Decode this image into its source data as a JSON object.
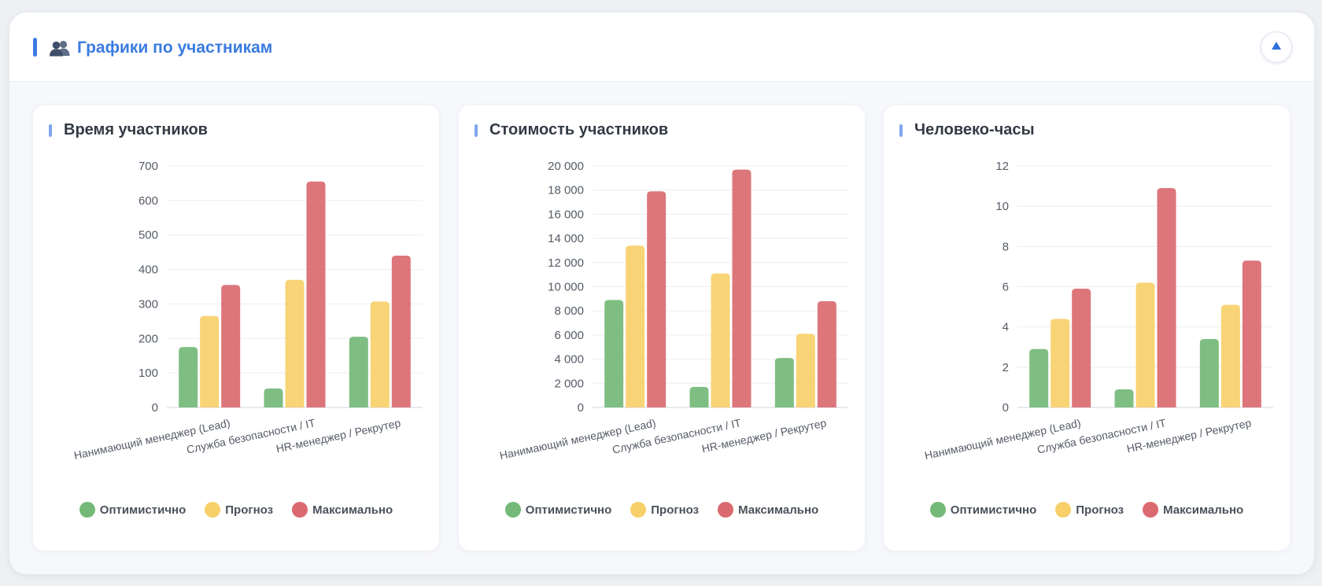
{
  "header": {
    "title": "Графики по участникам"
  },
  "colors": {
    "accent": "#3a7be0",
    "optimistic": "#74b977",
    "forecast": "#f7d06a",
    "maximum": "#da6a70"
  },
  "chart_data": [
    {
      "type": "bar",
      "title": "Время участников",
      "categories": [
        "Нанимающий менеджер (Lead)",
        "Служба безопасности / IT",
        "HR-менеджер / Рекрутер"
      ],
      "series": [
        {
          "name": "Оптимистично",
          "values": [
            175,
            55,
            205
          ]
        },
        {
          "name": "Прогноз",
          "values": [
            265,
            370,
            307
          ]
        },
        {
          "name": "Максимально",
          "values": [
            355,
            655,
            440
          ]
        }
      ],
      "ylim": [
        0,
        700
      ],
      "yticks": [
        "0",
        "100",
        "200",
        "300",
        "400",
        "500",
        "600",
        "700"
      ],
      "legend": "bottom"
    },
    {
      "type": "bar",
      "title": "Стоимость участников",
      "categories": [
        "Нанимающий менеджер (Lead)",
        "Служба безопасности / IT",
        "HR-менеджер / Рекрутер"
      ],
      "series": [
        {
          "name": "Оптимистично",
          "values": [
            8900,
            1700,
            4100
          ]
        },
        {
          "name": "Прогноз",
          "values": [
            13400,
            11100,
            6100
          ]
        },
        {
          "name": "Максимально",
          "values": [
            17900,
            19700,
            8800
          ]
        }
      ],
      "ylim": [
        0,
        20000
      ],
      "yticks": [
        "0",
        "2 000",
        "4 000",
        "6 000",
        "8 000",
        "10 000",
        "12 000",
        "14 000",
        "16 000",
        "18 000",
        "20 000"
      ],
      "legend": "bottom"
    },
    {
      "type": "bar",
      "title": "Человеко-часы",
      "categories": [
        "Нанимающий менеджер (Lead)",
        "Служба безопасности / IT",
        "HR-менеджер / Рекрутер"
      ],
      "series": [
        {
          "name": "Оптимистично",
          "values": [
            2.9,
            0.9,
            3.4
          ]
        },
        {
          "name": "Прогноз",
          "values": [
            4.4,
            6.2,
            5.1
          ]
        },
        {
          "name": "Максимально",
          "values": [
            5.9,
            10.9,
            7.3
          ]
        }
      ],
      "ylim": [
        0,
        12
      ],
      "yticks": [
        "0",
        "2",
        "4",
        "6",
        "8",
        "10",
        "12"
      ],
      "legend": "bottom"
    }
  ]
}
